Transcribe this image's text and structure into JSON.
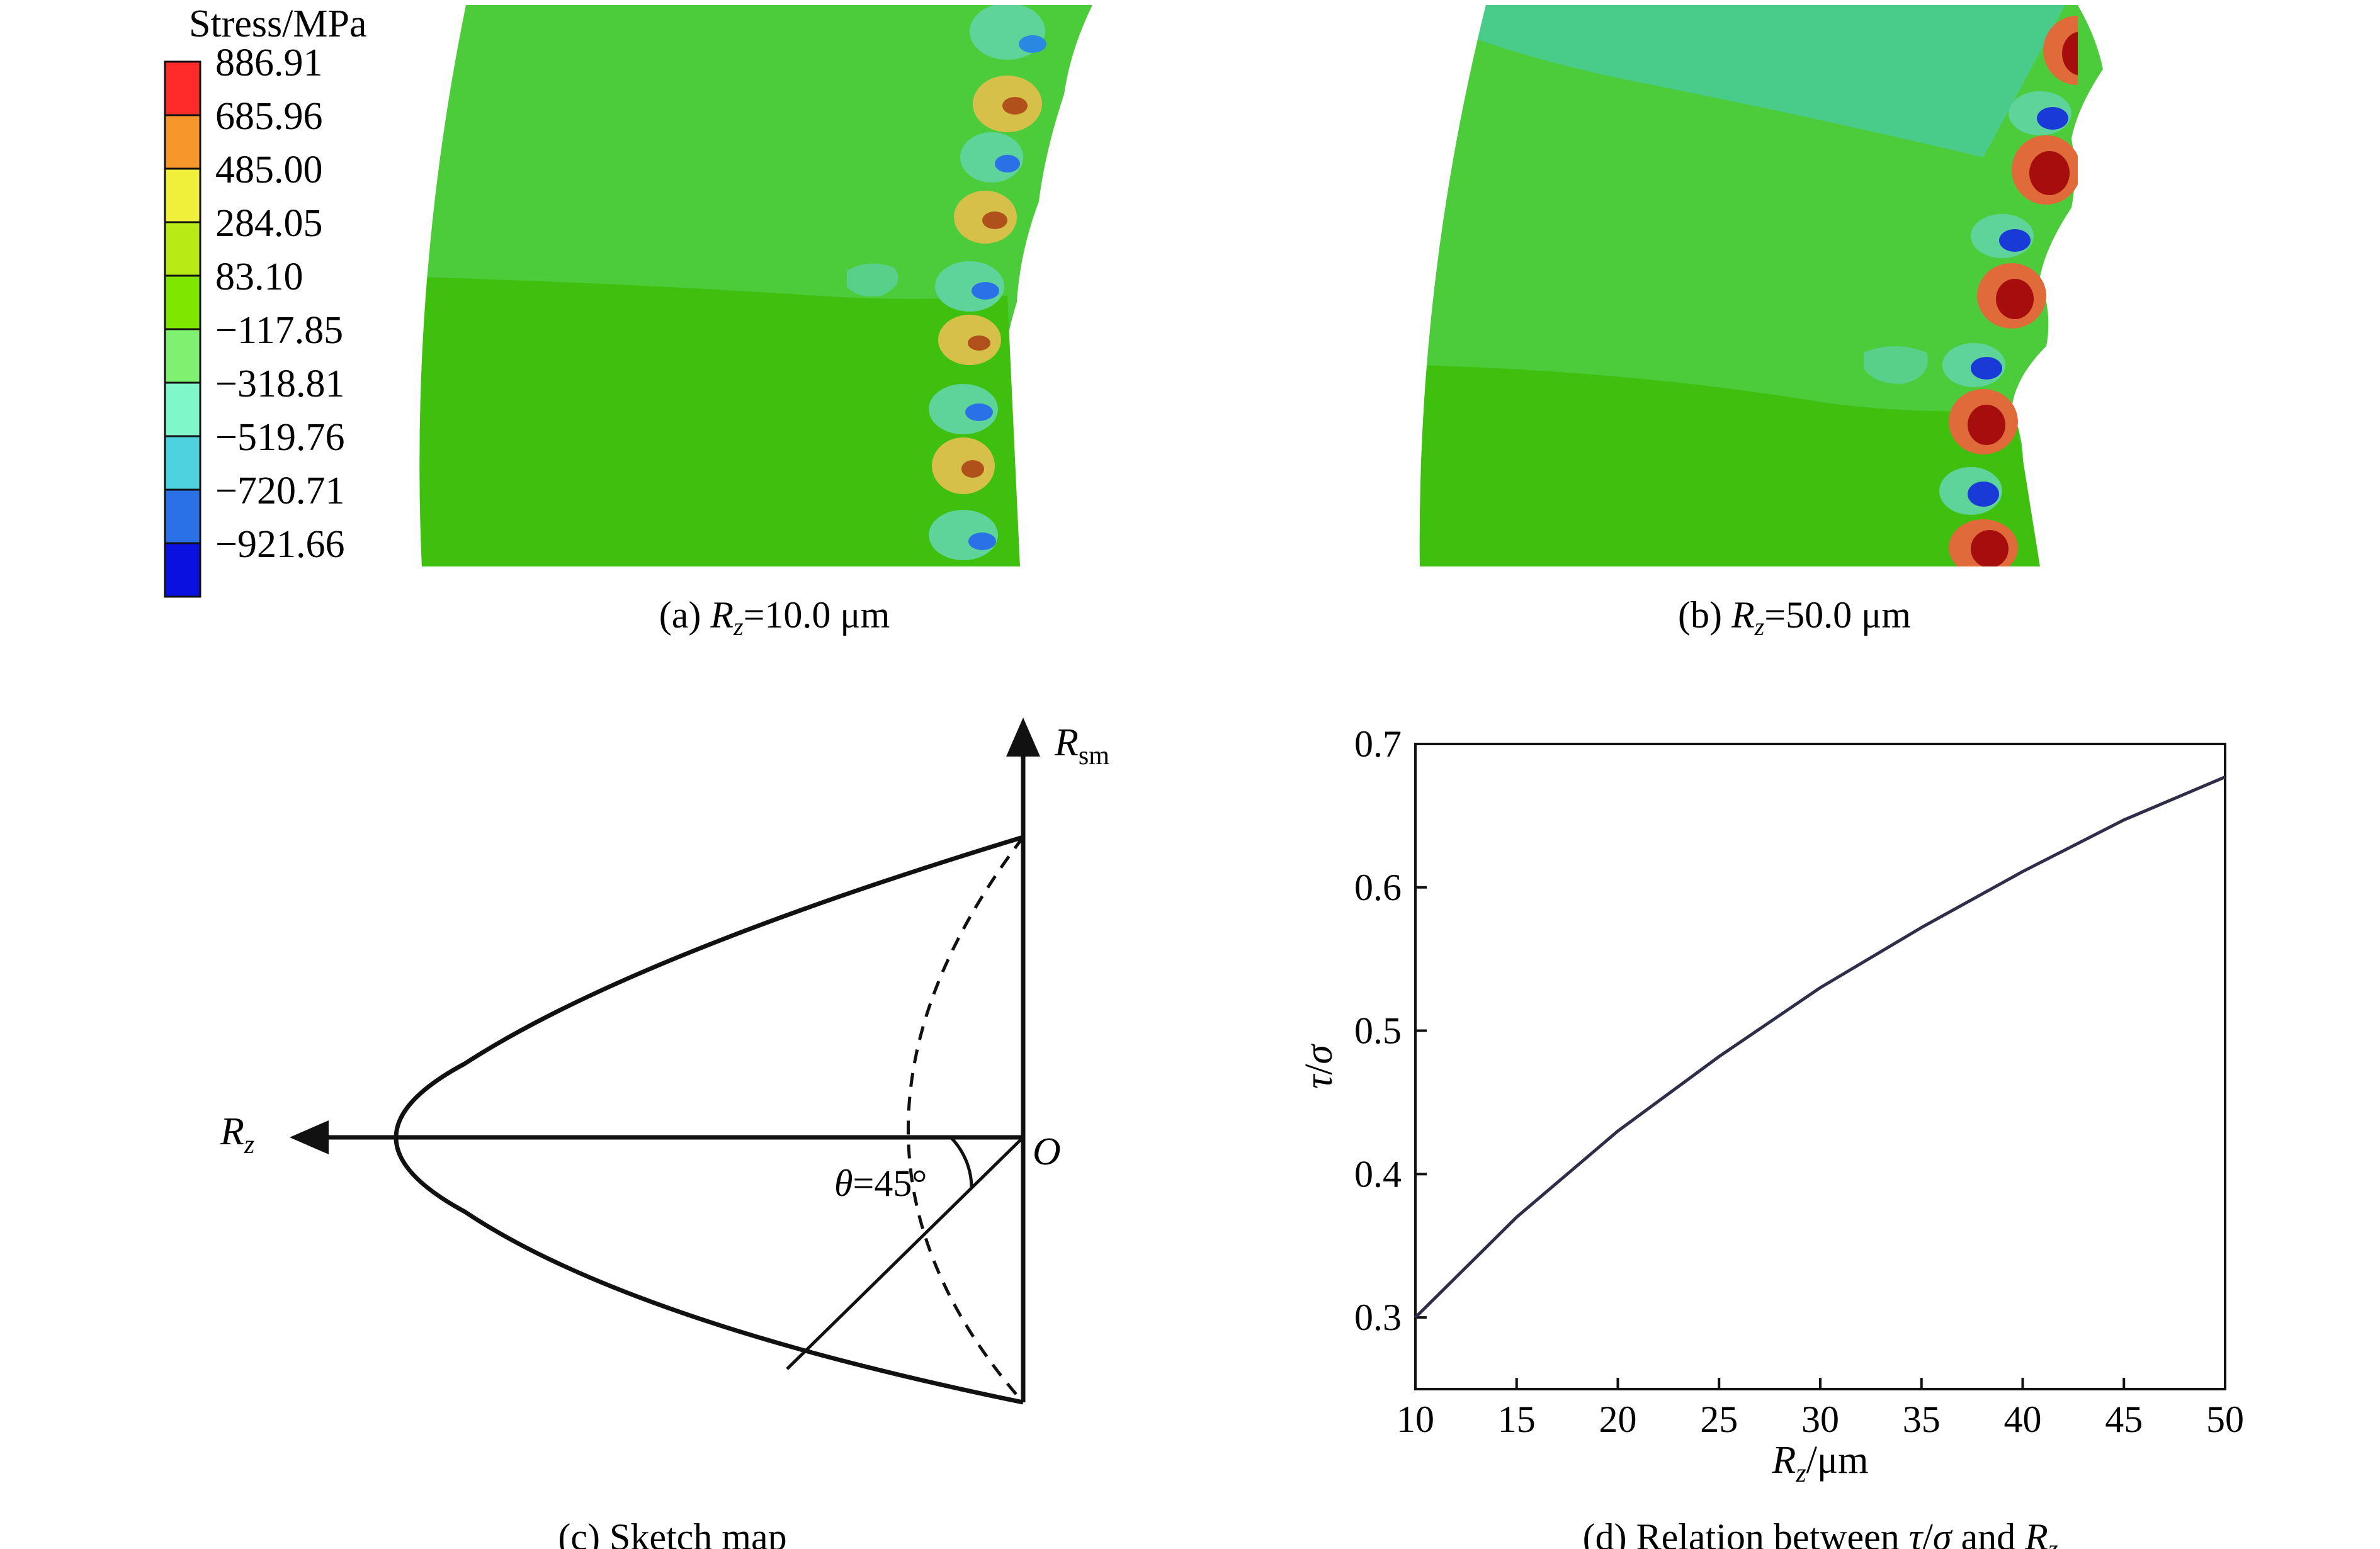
{
  "legend": {
    "title": "Stress/MPa",
    "values": [
      "886.91",
      "685.96",
      "485.00",
      "284.05",
      "83.10",
      "−117.85",
      "−318.81",
      "−519.76",
      "−720.71",
      "−921.66"
    ],
    "colors": [
      "#ff2a2a",
      "#f7962a",
      "#f0f03a",
      "#b8ea16",
      "#7fe600",
      "#80f070",
      "#80f7c8",
      "#4fd2e0",
      "#2a70e6",
      "#0a10e0"
    ]
  },
  "panels": {
    "a": {
      "prefix": "(a) ",
      "var": "R",
      "sub": "z",
      "suffix": "=10.0 μm"
    },
    "b": {
      "prefix": "(b) ",
      "var": "R",
      "sub": "z",
      "suffix": "=50.0 μm"
    },
    "c": {
      "caption": "(c) Sketch map"
    },
    "d": {
      "prefix": "(d) Relation between ",
      "tau": "τ",
      "slash": "/",
      "sigma": "σ",
      "and": " and ",
      "var": "R",
      "sub": "z"
    }
  },
  "sketch": {
    "axis_rz": {
      "var": "R",
      "sub": "z"
    },
    "axis_rsm": {
      "var": "R",
      "sub": "sm"
    },
    "origin": "O",
    "angle": {
      "theta": "θ",
      "value": "=45°"
    }
  },
  "chart_data": {
    "type": "line",
    "x": [
      10,
      15,
      20,
      25,
      30,
      35,
      40,
      45,
      50
    ],
    "series": [
      {
        "values": [
          0.3,
          0.37,
          0.43,
          0.482,
          0.53,
          0.572,
          0.611,
          0.647,
          0.677
        ]
      }
    ],
    "xlim": [
      10,
      50
    ],
    "ylim": [
      0.25,
      0.7
    ],
    "xticks": [
      "10",
      "15",
      "20",
      "25",
      "30",
      "35",
      "40",
      "45",
      "50"
    ],
    "yticks": [
      "0.3",
      "0.4",
      "0.5",
      "0.6",
      "0.7"
    ],
    "xlabel": {
      "var": "R",
      "sub": "z",
      "unit": "/μm"
    },
    "ylabel": {
      "tau": "τ",
      "slash": "/",
      "sigma": "σ"
    },
    "line_color": "#2e2e48",
    "grid": false
  }
}
